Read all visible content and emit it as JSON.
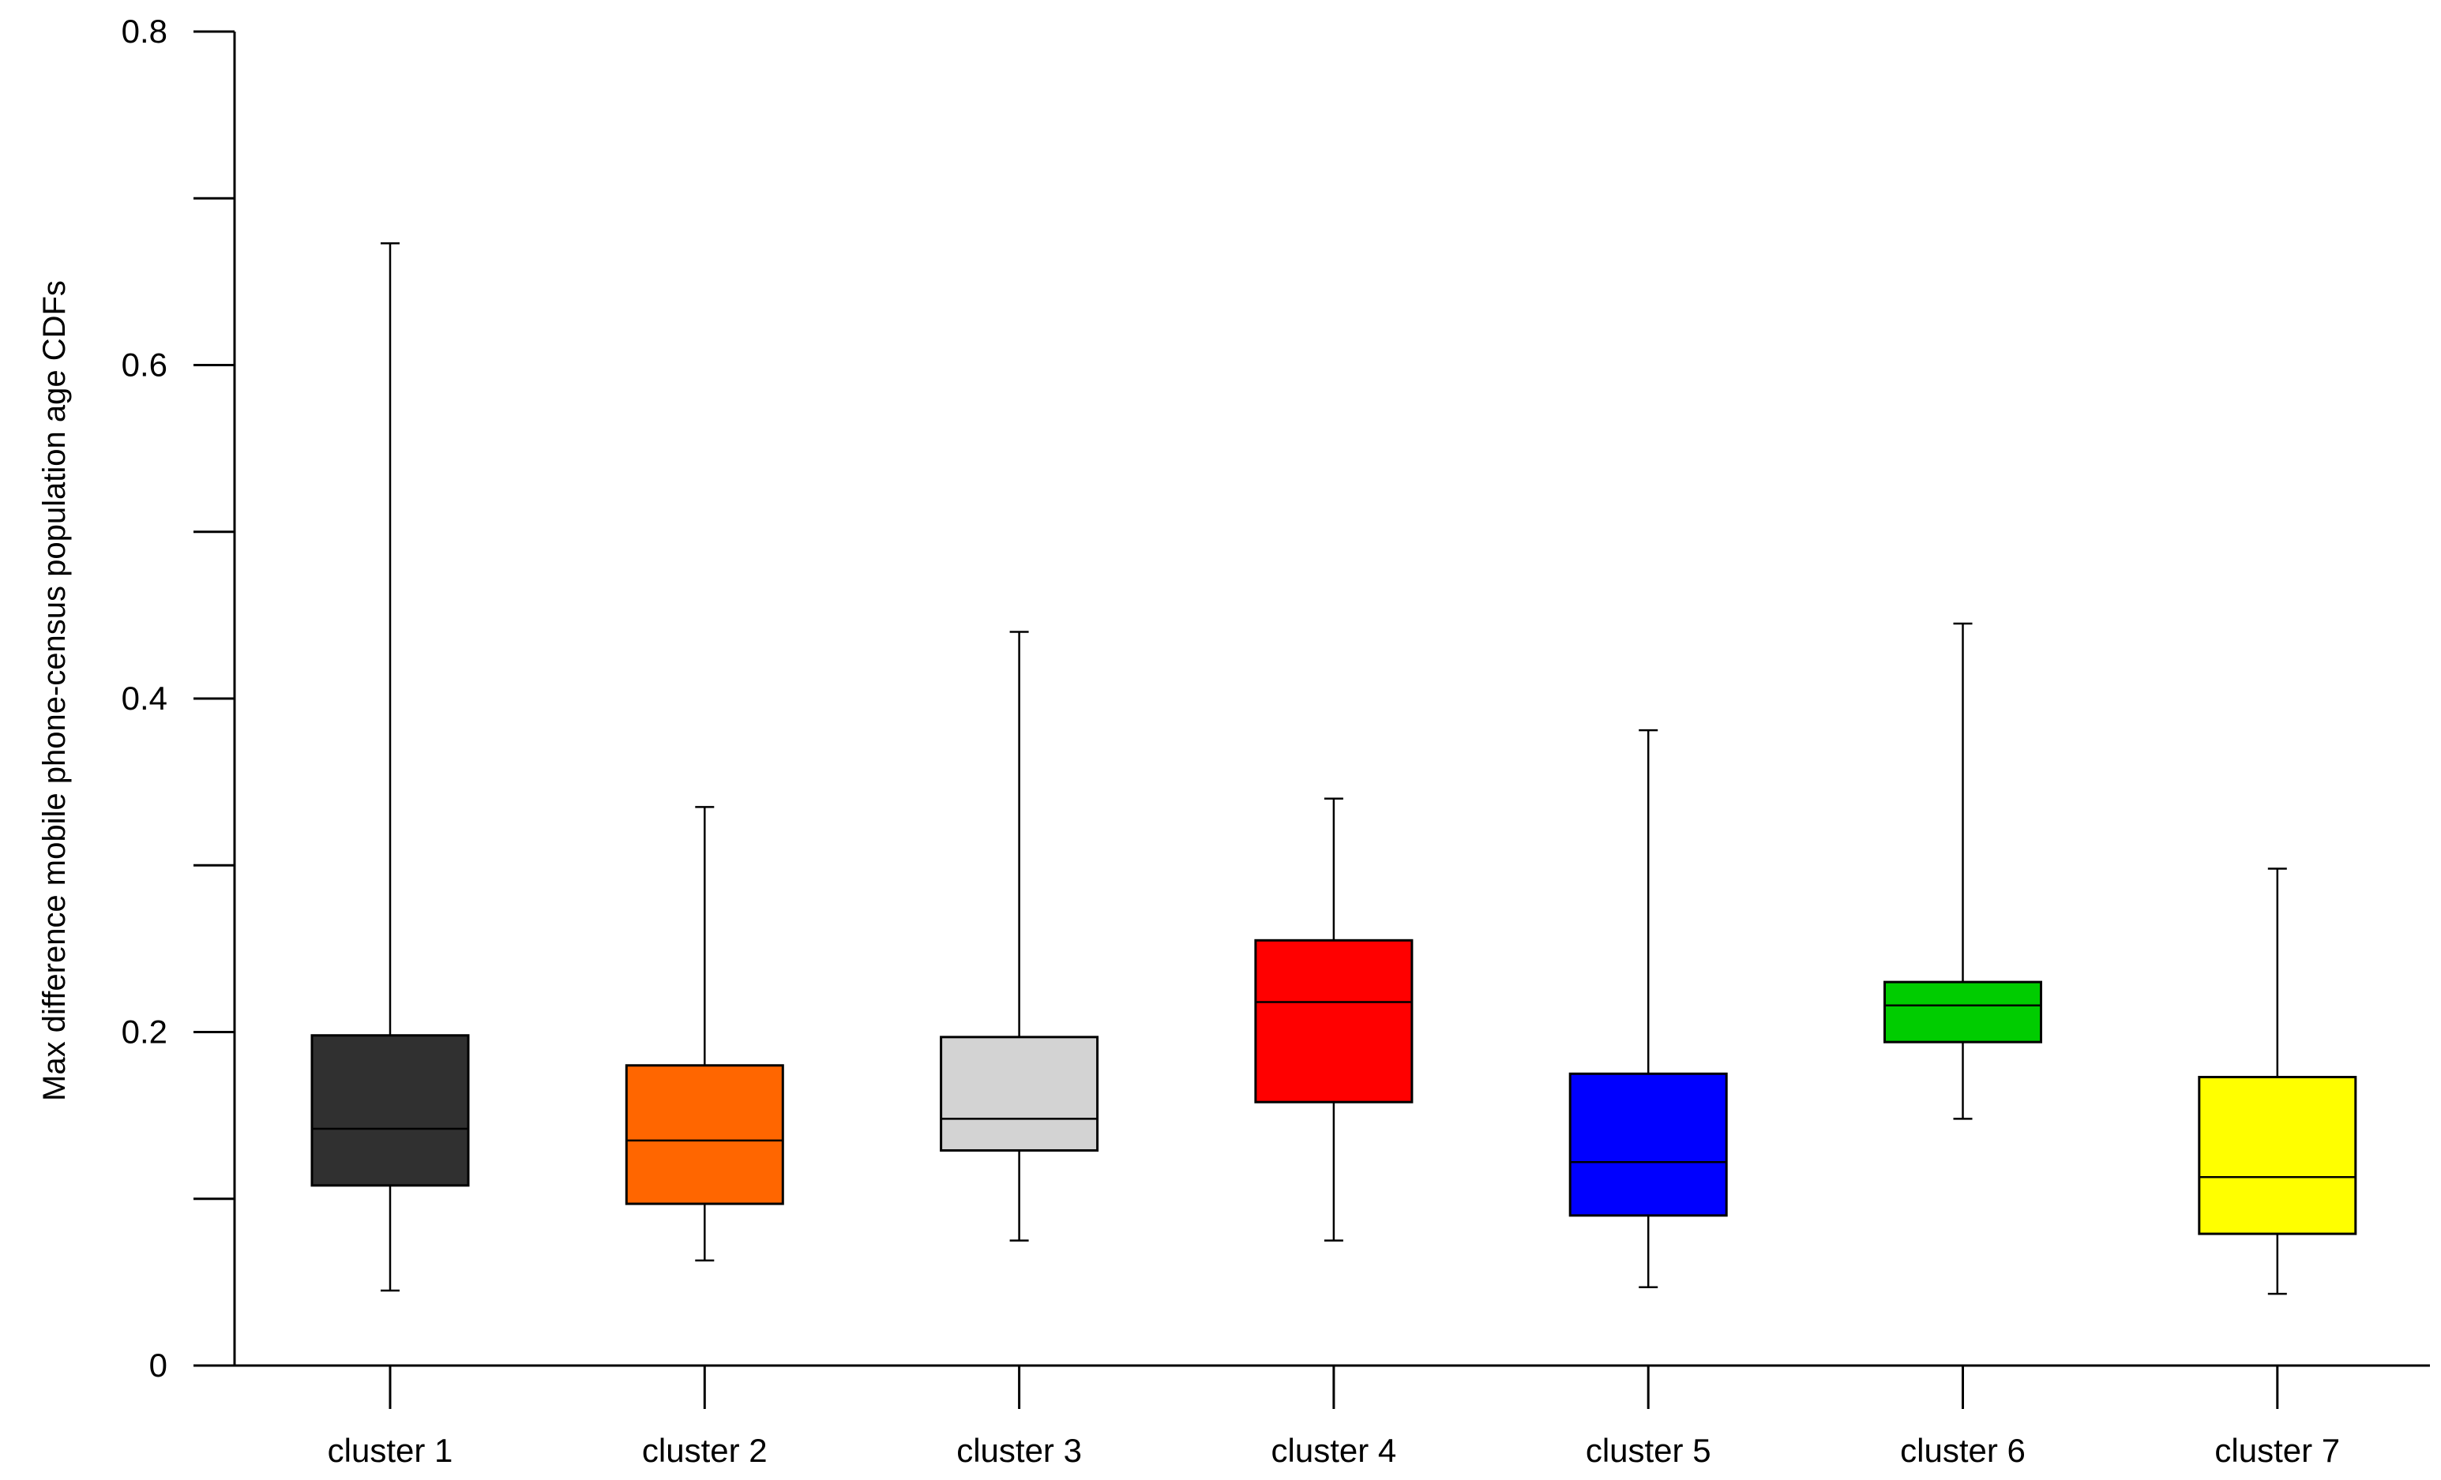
{
  "chart_data": {
    "type": "boxplot",
    "title": "",
    "xlabel": "",
    "ylabel": "Max  difference mobile phone-census population age CDFs",
    "ylim": [
      0,
      0.8
    ],
    "yticks": [
      0,
      0.2,
      0.4,
      0.6,
      0.8
    ],
    "ytick_labels": [
      "0",
      "0.2",
      "0.4",
      "0.6",
      "0.8"
    ],
    "categories": [
      "cluster 1",
      "cluster 2",
      "cluster 3",
      "cluster 4",
      "cluster 5",
      "cluster 6",
      "cluster 7"
    ],
    "boxes": [
      {
        "label": "cluster 1",
        "min": 0.045,
        "q1": 0.108,
        "median": 0.142,
        "q3": 0.198,
        "max": 0.673,
        "color": "#303030"
      },
      {
        "label": "cluster 2",
        "min": 0.063,
        "q1": 0.097,
        "median": 0.135,
        "q3": 0.18,
        "max": 0.335,
        "color": "#ff6600"
      },
      {
        "label": "cluster 3",
        "min": 0.075,
        "q1": 0.129,
        "median": 0.148,
        "q3": 0.197,
        "max": 0.44,
        "color": "#d3d3d3"
      },
      {
        "label": "cluster 4",
        "min": 0.075,
        "q1": 0.158,
        "median": 0.218,
        "q3": 0.255,
        "max": 0.34,
        "color": "#ff0000"
      },
      {
        "label": "cluster 5",
        "min": 0.047,
        "q1": 0.09,
        "median": 0.122,
        "q3": 0.175,
        "max": 0.381,
        "color": "#0000ff"
      },
      {
        "label": "cluster 6",
        "min": 0.148,
        "q1": 0.194,
        "median": 0.216,
        "q3": 0.23,
        "max": 0.445,
        "color": "#00cc00"
      },
      {
        "label": "cluster 7",
        "min": 0.043,
        "q1": 0.079,
        "median": 0.113,
        "q3": 0.173,
        "max": 0.298,
        "color": "#ffff00"
      }
    ],
    "grid": false,
    "legend": "none"
  }
}
